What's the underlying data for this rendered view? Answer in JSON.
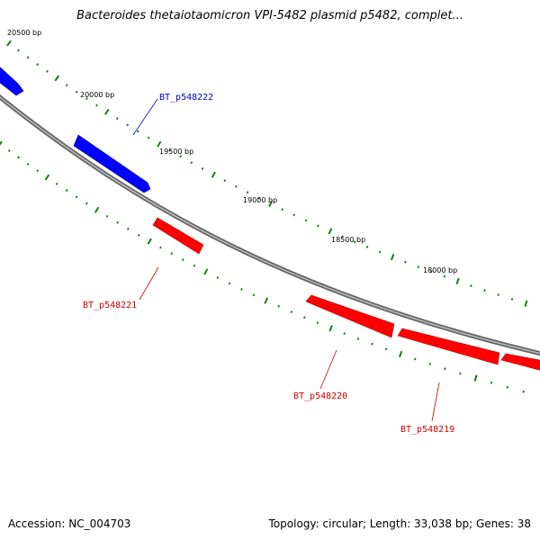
{
  "title": "Bacteroides thetaiotaomicron VPI-5482 plasmid p5482, complet...",
  "accession": "Accession: NC_004703",
  "summary": "Topology: circular; Length: 33,038 bp; Genes: 38",
  "colors": {
    "forward": "#0000ff",
    "reverse": "#ff0000",
    "backbone": "#888888",
    "ticks": "#1a7a1a"
  },
  "tick_labels": [
    "20500 bp",
    "20000 bp",
    "19500 bp",
    "19000 bp",
    "18500 bp",
    "18000 bp"
  ],
  "genes": [
    {
      "label": "BT_p548222",
      "strand": "forward"
    },
    {
      "label": "BT_p548221",
      "strand": "reverse"
    },
    {
      "label": "BT_p548220",
      "strand": "reverse"
    },
    {
      "label": "BT_p548219",
      "strand": "reverse"
    }
  ]
}
